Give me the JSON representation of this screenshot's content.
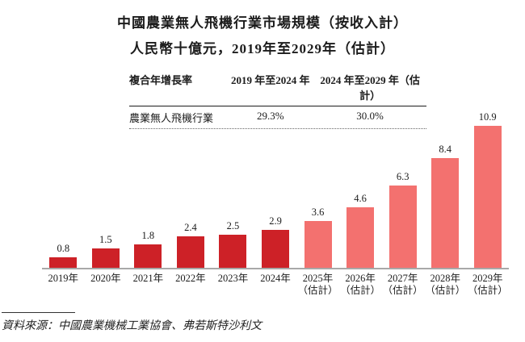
{
  "title": {
    "line1": "中國農業無人飛機行業市場規模（按收入計）",
    "line2": "人民幣十億元，2019年至2029年（估計）"
  },
  "cagr_table": {
    "header": [
      "複合年增長率",
      "2019 年至2024 年",
      "2024 年至2029 年（估計）"
    ],
    "rows": [
      [
        "農業無人飛機行業",
        "29.3%",
        "30.0%"
      ]
    ]
  },
  "chart_data": {
    "type": "bar",
    "title": "中國農業無人飛機行業市場規模（按收入計）",
    "subtitle": "人民幣十億元，2019年至2029年（估計）",
    "unit": "人民幣十億元",
    "ylim": [
      0,
      12
    ],
    "grid": false,
    "legend": "none",
    "value_labels": true,
    "colors": {
      "actual": "#CD2127",
      "estimate": "#F3716F"
    },
    "bars": [
      {
        "category": "2019年",
        "sublabel": "",
        "value": 0.8,
        "series": "actual"
      },
      {
        "category": "2020年",
        "sublabel": "",
        "value": 1.5,
        "series": "actual"
      },
      {
        "category": "2021年",
        "sublabel": "",
        "value": 1.8,
        "series": "actual"
      },
      {
        "category": "2022年",
        "sublabel": "",
        "value": 2.4,
        "series": "actual"
      },
      {
        "category": "2023年",
        "sublabel": "",
        "value": 2.5,
        "series": "actual"
      },
      {
        "category": "2024年",
        "sublabel": "",
        "value": 2.9,
        "series": "actual"
      },
      {
        "category": "2025年",
        "sublabel": "（估計）",
        "value": 3.6,
        "series": "estimate"
      },
      {
        "category": "2026年",
        "sublabel": "（估計）",
        "value": 4.6,
        "series": "estimate"
      },
      {
        "category": "2027年",
        "sublabel": "（估計）",
        "value": 6.3,
        "series": "estimate"
      },
      {
        "category": "2028年",
        "sublabel": "（估計）",
        "value": 8.4,
        "series": "estimate"
      },
      {
        "category": "2029年",
        "sublabel": "（估計）",
        "value": 10.9,
        "series": "estimate"
      }
    ]
  },
  "source": "資料來源：中國農業機械工業協會、弗若斯特沙利文"
}
